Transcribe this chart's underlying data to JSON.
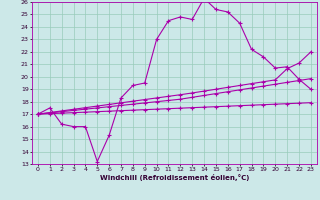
{
  "xlabel": "Windchill (Refroidissement éolien,°C)",
  "bg_color": "#cce8e8",
  "grid_color": "#99ccbb",
  "line_color": "#aa00aa",
  "xlim": [
    -0.5,
    23.5
  ],
  "ylim": [
    13,
    26
  ],
  "xtick_labels": [
    "0",
    "1",
    "2",
    "3",
    "4",
    "5",
    "6",
    "7",
    "8",
    "9",
    "10",
    "11",
    "12",
    "13",
    "14",
    "15",
    "16",
    "17",
    "18",
    "19",
    "20",
    "21",
    "22",
    "23"
  ],
  "xtick_vals": [
    0,
    1,
    2,
    3,
    4,
    5,
    6,
    7,
    8,
    9,
    10,
    11,
    12,
    13,
    14,
    15,
    16,
    17,
    18,
    19,
    20,
    21,
    22,
    23
  ],
  "ytick_vals": [
    13,
    14,
    15,
    16,
    17,
    18,
    19,
    20,
    21,
    22,
    23,
    24,
    25,
    26
  ],
  "s1_x": [
    0,
    1,
    2,
    3,
    4,
    5,
    6,
    7,
    8,
    9,
    10,
    11,
    12,
    13,
    14,
    15,
    16,
    17,
    18,
    19,
    20,
    21,
    22,
    23
  ],
  "s1_y": [
    17.0,
    17.5,
    16.2,
    16.0,
    16.0,
    13.2,
    15.3,
    18.3,
    19.3,
    19.5,
    23.0,
    24.5,
    24.8,
    24.6,
    26.3,
    25.4,
    25.2,
    24.3,
    22.2,
    21.6,
    20.7,
    20.8,
    19.8,
    19.0
  ],
  "s2_x": [
    0,
    1,
    2,
    3,
    4,
    5,
    6,
    7,
    8,
    9,
    10,
    11,
    12,
    13,
    14,
    15,
    16,
    17,
    18,
    19,
    20,
    21,
    22,
    23
  ],
  "s2_y": [
    17.0,
    17.1,
    17.2,
    17.3,
    17.4,
    17.5,
    17.6,
    17.7,
    17.8,
    17.9,
    18.0,
    18.1,
    18.2,
    18.35,
    18.5,
    18.65,
    18.8,
    18.95,
    19.1,
    19.25,
    19.4,
    19.55,
    19.7,
    19.85
  ],
  "s3_x": [
    0,
    1,
    2,
    3,
    4,
    5,
    6,
    7,
    8,
    9,
    10,
    11,
    12,
    13,
    14,
    15,
    16,
    17,
    18,
    19,
    20,
    21,
    22,
    23
  ],
  "s3_y": [
    17.0,
    17.13,
    17.26,
    17.39,
    17.52,
    17.65,
    17.78,
    17.91,
    18.04,
    18.17,
    18.3,
    18.43,
    18.56,
    18.7,
    18.85,
    19.0,
    19.15,
    19.3,
    19.45,
    19.6,
    19.75,
    20.65,
    21.1,
    22.0
  ],
  "s4_x": [
    0,
    1,
    2,
    3,
    4,
    5,
    6,
    7,
    8,
    9,
    10,
    11,
    12,
    13,
    14,
    15,
    16,
    17,
    18,
    19,
    20,
    21,
    22,
    23
  ],
  "s4_y": [
    17.0,
    17.04,
    17.08,
    17.12,
    17.16,
    17.2,
    17.24,
    17.28,
    17.32,
    17.36,
    17.4,
    17.44,
    17.48,
    17.52,
    17.56,
    17.6,
    17.64,
    17.68,
    17.72,
    17.76,
    17.8,
    17.84,
    17.88,
    17.92
  ]
}
